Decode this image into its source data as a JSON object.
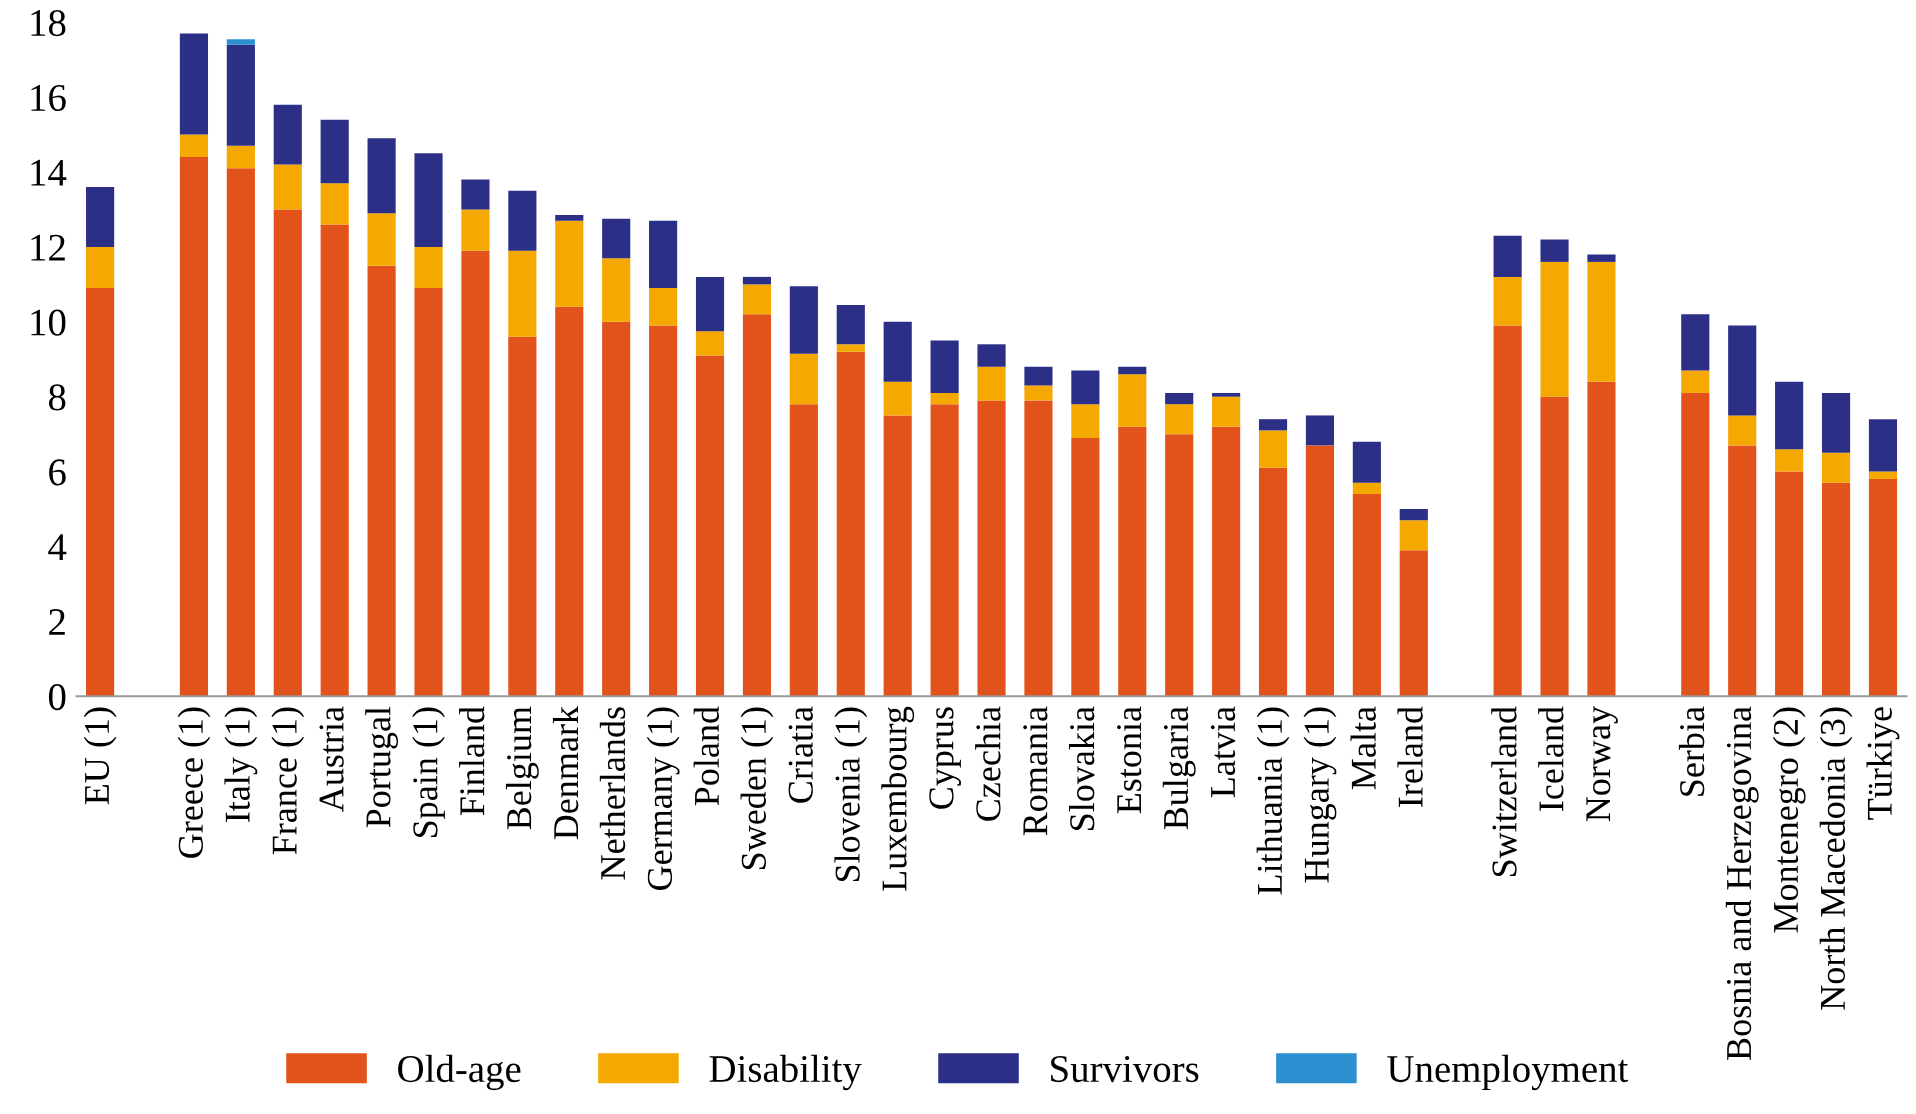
{
  "chart_data": {
    "type": "bar",
    "stacked": true,
    "categories": [
      "EU (1)",
      null,
      "Greece (1)",
      "Italy (1)",
      "France (1)",
      "Austria",
      "Portugal",
      "Spain (1)",
      "Finland",
      "Belgium",
      "Denmark",
      "Netherlands",
      "Germany (1)",
      "Poland",
      "Sweden (1)",
      "Criatia",
      "Slovenia (1)",
      "Luxembourg",
      "Cyprus",
      "Czechia",
      "Romania",
      "Slovakia",
      "Estonia",
      "Bulgaria",
      "Latvia",
      "Lithuania (1)",
      "Hungary (1)",
      "Malta",
      "Ireland",
      null,
      "Switzerland",
      "Iceland",
      "Norway",
      null,
      "Serbia",
      "Bosnia and Herzegovina",
      "Montenegro (2)",
      "North Macedonia (3)",
      "Türkiye"
    ],
    "series": [
      {
        "name": "Old-age",
        "color": "#e2531c",
        "values": [
          10.9,
          null,
          14.4,
          14.1,
          13.0,
          12.6,
          11.5,
          10.9,
          11.9,
          9.6,
          10.4,
          10.0,
          9.9,
          9.1,
          10.2,
          7.8,
          9.2,
          7.5,
          7.8,
          7.9,
          7.9,
          6.9,
          7.2,
          7.0,
          7.2,
          6.1,
          6.7,
          5.4,
          3.9,
          null,
          9.9,
          8.0,
          8.4,
          null,
          8.1,
          6.7,
          6.0,
          5.7,
          5.8
        ]
      },
      {
        "name": "Disability",
        "color": "#f5a800",
        "values": [
          1.1,
          null,
          0.6,
          0.6,
          1.2,
          1.1,
          1.4,
          1.1,
          1.1,
          2.3,
          2.3,
          1.7,
          1.0,
          0.65,
          0.8,
          1.35,
          0.2,
          0.9,
          0.3,
          0.9,
          0.4,
          0.9,
          1.4,
          0.8,
          0.8,
          1.0,
          0,
          0.3,
          0.8,
          null,
          1.3,
          3.6,
          3.2,
          null,
          0.6,
          0.8,
          0.6,
          0.8,
          0.2
        ]
      },
      {
        "name": "Survivors",
        "color": "#2b2f86",
        "values": [
          1.6,
          null,
          2.7,
          2.7,
          1.6,
          1.7,
          2.0,
          2.5,
          0.8,
          1.6,
          0.15,
          1.05,
          1.8,
          1.45,
          0.2,
          1.8,
          1.05,
          1.6,
          1.4,
          0.6,
          0.5,
          0.9,
          0.2,
          0.3,
          0.1,
          0.3,
          0.8,
          1.1,
          0.3,
          null,
          1.1,
          0.6,
          0.2,
          null,
          1.5,
          2.4,
          1.8,
          1.6,
          1.4
        ]
      },
      {
        "name": "Unemployment",
        "color": "#2e8fd1",
        "values": [
          null,
          null,
          null,
          0.15,
          null,
          null,
          null,
          null,
          null,
          null,
          null,
          null,
          null,
          null,
          null,
          null,
          null,
          null,
          null,
          null,
          null,
          null,
          null,
          null,
          null,
          null,
          null,
          null,
          null,
          null,
          null,
          null,
          null,
          null,
          null,
          null,
          null,
          null,
          null
        ]
      }
    ],
    "ylim": [
      0,
      18
    ],
    "yticks": [
      0,
      2,
      4,
      6,
      8,
      10,
      12,
      14,
      16,
      18
    ],
    "grid": false,
    "legend": "bottom"
  }
}
